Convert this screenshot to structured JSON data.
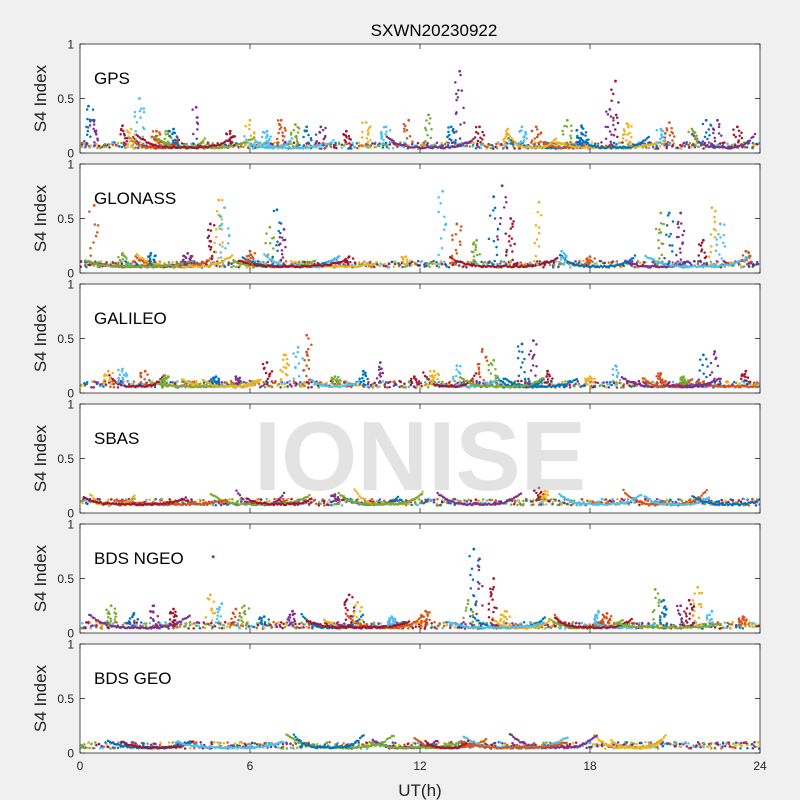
{
  "figure": {
    "title": "SXWN20230922",
    "xlabel": "UT(h)",
    "watermark": "IONISE"
  },
  "chart_data": [
    {
      "type": "scatter",
      "panel_label": "GPS",
      "ylabel": "S4 Index",
      "xlim": [
        0,
        24
      ],
      "ylim": [
        0,
        1
      ],
      "x_ticks": [
        0,
        6,
        12,
        18,
        24
      ],
      "y_ticks": [
        0,
        0.5,
        1
      ],
      "baseline": 0.07,
      "peaks": [
        [
          0.3,
          0.43
        ],
        [
          0.5,
          0.3
        ],
        [
          1.5,
          0.25
        ],
        [
          1.8,
          0.22
        ],
        [
          2.1,
          0.5
        ],
        [
          2.7,
          0.2
        ],
        [
          3.1,
          0.2
        ],
        [
          3.3,
          0.22
        ],
        [
          4.1,
          0.42
        ],
        [
          5.3,
          0.2
        ],
        [
          6.0,
          0.3
        ],
        [
          6.6,
          0.2
        ],
        [
          7.1,
          0.3
        ],
        [
          7.6,
          0.26
        ],
        [
          8.0,
          0.24
        ],
        [
          8.5,
          0.24
        ],
        [
          9.4,
          0.2
        ],
        [
          10.1,
          0.28
        ],
        [
          10.8,
          0.24
        ],
        [
          11.6,
          0.3
        ],
        [
          12.3,
          0.35
        ],
        [
          13.1,
          0.24
        ],
        [
          13.4,
          0.75
        ],
        [
          14.1,
          0.24
        ],
        [
          15.1,
          0.22
        ],
        [
          15.6,
          0.24
        ],
        [
          16.1,
          0.24
        ],
        [
          17.2,
          0.3
        ],
        [
          17.7,
          0.25
        ],
        [
          18.7,
          0.4
        ],
        [
          18.9,
          0.66
        ],
        [
          19.3,
          0.27
        ],
        [
          20.5,
          0.22
        ],
        [
          20.8,
          0.28
        ],
        [
          21.6,
          0.22
        ],
        [
          22.1,
          0.3
        ],
        [
          22.5,
          0.3
        ],
        [
          23.2,
          0.24
        ]
      ]
    },
    {
      "type": "scatter",
      "panel_label": "GLONASS",
      "ylabel": "S4 Index",
      "xlim": [
        0,
        24
      ],
      "ylim": [
        0,
        1
      ],
      "x_ticks": [
        0,
        6,
        12,
        18,
        24
      ],
      "y_ticks": [
        0,
        0.5,
        1
      ],
      "baseline": 0.08,
      "peaks": [
        [
          0.5,
          0.62
        ],
        [
          1.5,
          0.18
        ],
        [
          2.5,
          0.18
        ],
        [
          3.8,
          0.18
        ],
        [
          4.6,
          0.45
        ],
        [
          4.9,
          0.67
        ],
        [
          5.1,
          0.6
        ],
        [
          6.0,
          0.2
        ],
        [
          6.7,
          0.42
        ],
        [
          6.95,
          0.58
        ],
        [
          7.2,
          0.4
        ],
        [
          9.5,
          0.15
        ],
        [
          11.5,
          0.15
        ],
        [
          12.8,
          0.75
        ],
        [
          13.3,
          0.45
        ],
        [
          14.0,
          0.3
        ],
        [
          14.6,
          0.7
        ],
        [
          14.9,
          0.8
        ],
        [
          15.2,
          0.5
        ],
        [
          16.2,
          0.65
        ],
        [
          17.0,
          0.2
        ],
        [
          18.0,
          0.15
        ],
        [
          20.5,
          0.55
        ],
        [
          20.8,
          0.55
        ],
        [
          21.2,
          0.55
        ],
        [
          22.0,
          0.3
        ],
        [
          22.3,
          0.6
        ],
        [
          22.6,
          0.45
        ],
        [
          23.5,
          0.2
        ]
      ]
    },
    {
      "type": "scatter",
      "panel_label": "GALILEO",
      "ylabel": "S4 Index",
      "xlim": [
        0,
        24
      ],
      "ylim": [
        0,
        1
      ],
      "x_ticks": [
        0,
        6,
        12,
        18,
        24
      ],
      "y_ticks": [
        0,
        0.5,
        1
      ],
      "baseline": 0.08,
      "peaks": [
        [
          1.0,
          0.2
        ],
        [
          1.5,
          0.22
        ],
        [
          2.3,
          0.2
        ],
        [
          3.0,
          0.16
        ],
        [
          4.8,
          0.15
        ],
        [
          5.5,
          0.15
        ],
        [
          6.6,
          0.28
        ],
        [
          7.2,
          0.35
        ],
        [
          7.7,
          0.42
        ],
        [
          8.0,
          0.53
        ],
        [
          9.0,
          0.15
        ],
        [
          10.0,
          0.2
        ],
        [
          10.6,
          0.28
        ],
        [
          11.8,
          0.15
        ],
        [
          12.5,
          0.2
        ],
        [
          13.3,
          0.25
        ],
        [
          14.2,
          0.4
        ],
        [
          14.6,
          0.3
        ],
        [
          15.6,
          0.45
        ],
        [
          16.0,
          0.48
        ],
        [
          16.5,
          0.2
        ],
        [
          18.0,
          0.15
        ],
        [
          18.9,
          0.25
        ],
        [
          20.5,
          0.18
        ],
        [
          21.3,
          0.15
        ],
        [
          22.0,
          0.35
        ],
        [
          22.4,
          0.38
        ],
        [
          23.5,
          0.2
        ]
      ]
    },
    {
      "type": "scatter",
      "panel_label": "SBAS",
      "ylabel": "S4 Index",
      "xlim": [
        0,
        24
      ],
      "ylim": [
        0,
        1
      ],
      "x_ticks": [
        0,
        6,
        12,
        18,
        24
      ],
      "y_ticks": [
        0,
        0.5,
        1
      ],
      "baseline": 0.1,
      "peaks": [
        [
          9.0,
          0.17
        ],
        [
          16.2,
          0.23
        ],
        [
          16.4,
          0.2
        ]
      ]
    },
    {
      "type": "scatter",
      "panel_label": "BDS NGEO",
      "ylabel": "S4 Index",
      "xlim": [
        0,
        24
      ],
      "ylim": [
        0,
        1
      ],
      "x_ticks": [
        0,
        6,
        12,
        18,
        24
      ],
      "y_ticks": [
        0,
        0.5,
        1
      ],
      "baseline": 0.07,
      "peaks": [
        [
          1.1,
          0.25
        ],
        [
          1.9,
          0.18
        ],
        [
          2.6,
          0.25
        ],
        [
          3.3,
          0.22
        ],
        [
          4.6,
          0.35
        ],
        [
          5.0,
          0.27
        ],
        [
          5.5,
          0.22
        ],
        [
          5.8,
          0.25
        ],
        [
          6.5,
          0.15
        ],
        [
          7.5,
          0.2
        ],
        [
          9.5,
          0.35
        ],
        [
          9.8,
          0.28
        ],
        [
          11.0,
          0.15
        ],
        [
          12.2,
          0.2
        ],
        [
          13.7,
          0.3
        ],
        [
          13.9,
          0.77
        ],
        [
          14.1,
          0.68
        ],
        [
          14.6,
          0.5
        ],
        [
          15.0,
          0.2
        ],
        [
          18.3,
          0.2
        ],
        [
          18.6,
          0.18
        ],
        [
          20.3,
          0.4
        ],
        [
          20.6,
          0.3
        ],
        [
          21.2,
          0.25
        ],
        [
          21.5,
          0.3
        ],
        [
          21.8,
          0.42
        ],
        [
          22.3,
          0.2
        ],
        [
          23.4,
          0.15
        ]
      ],
      "outliers": [
        [
          4.7,
          0.7
        ]
      ]
    },
    {
      "type": "scatter",
      "panel_label": "BDS GEO",
      "ylabel": "S4 Index",
      "xlim": [
        0,
        24
      ],
      "ylim": [
        0,
        1
      ],
      "x_ticks": [
        0,
        6,
        12,
        18,
        24
      ],
      "y_ticks": [
        0,
        0.5,
        1
      ],
      "baseline": 0.07,
      "peaks": []
    }
  ],
  "colors": [
    "#0072BD",
    "#D95319",
    "#EDB120",
    "#7E2F8E",
    "#77AC30",
    "#4DBEEE",
    "#A2142F"
  ]
}
